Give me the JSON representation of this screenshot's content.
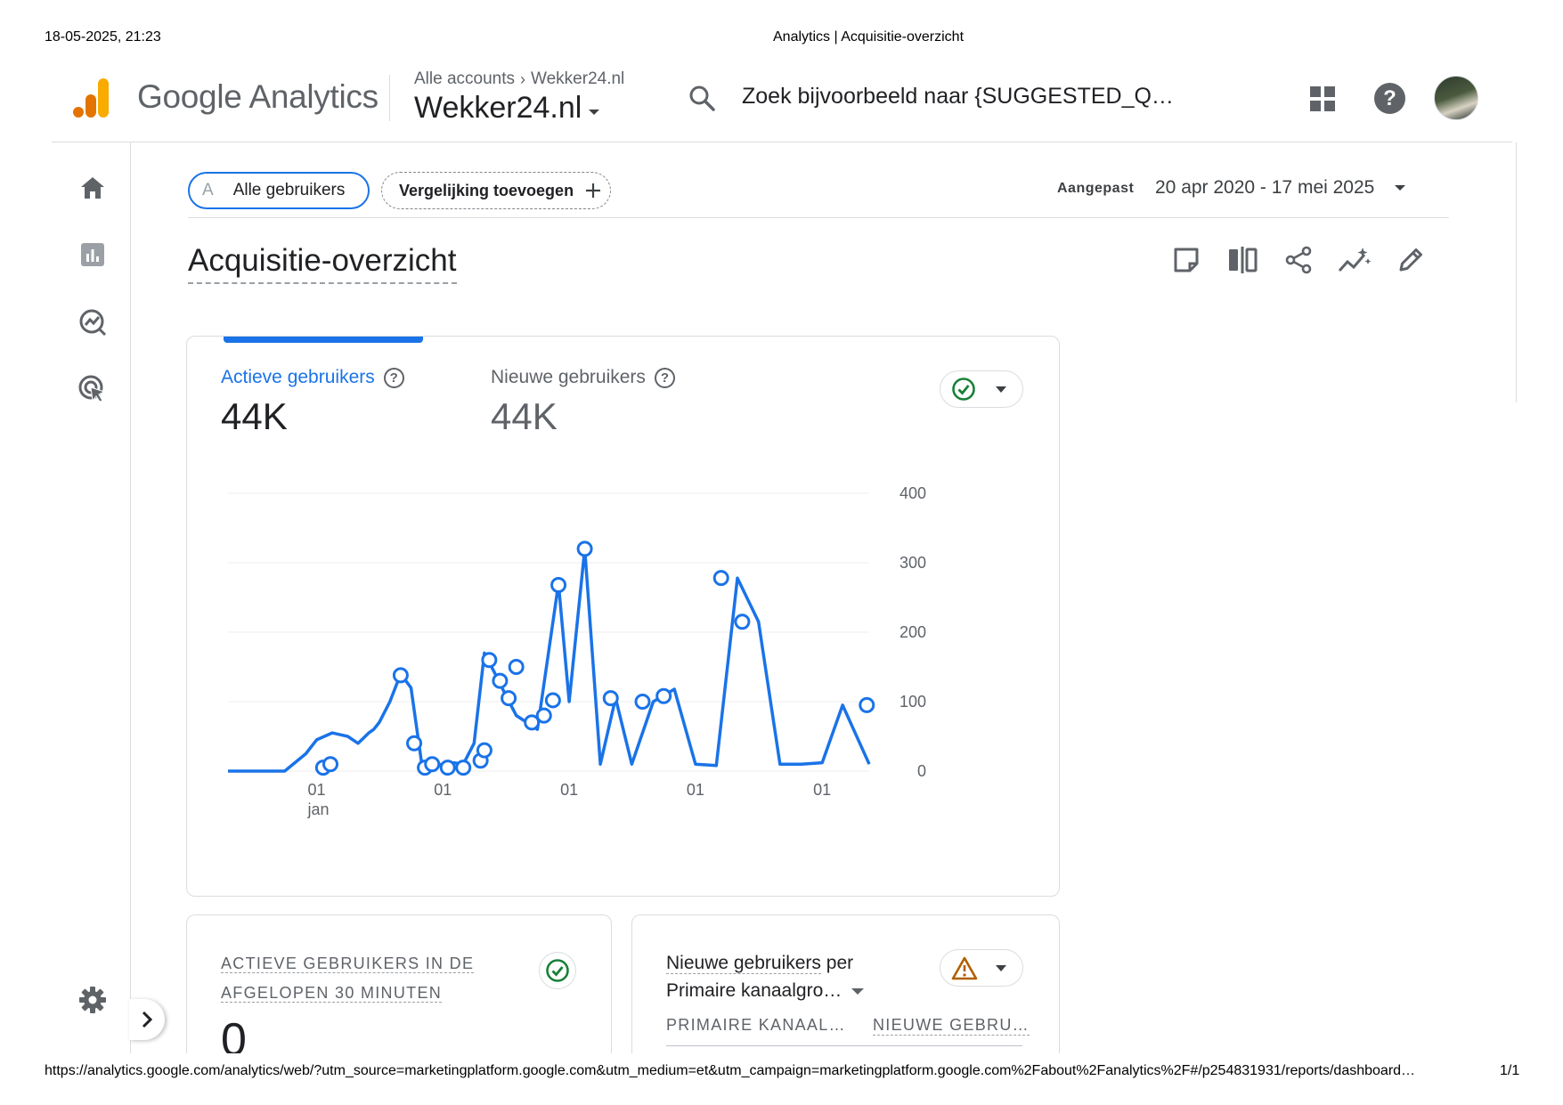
{
  "print_header": {
    "datetime": "18-05-2025, 21:23",
    "page_title": "Analytics | Acquisitie-overzicht"
  },
  "print_footer": {
    "url": "https://analytics.google.com/analytics/web/?utm_source=marketingplatform.google.com&utm_medium=et&utm_campaign=marketingplatform.google.com%2Fabout%2Fanalytics%2F#/p254831931/reports/dashboard…",
    "page_count": "1/1"
  },
  "app": {
    "brand": "Google Analytics",
    "breadcrumb_account": "Alle accounts",
    "breadcrumb_separator": ">",
    "breadcrumb_property": "Wekker24.nl",
    "property_name": "Wekker24.nl",
    "search_placeholder": "Zoek bijvoorbeeld naar {SUGGESTED_Q…"
  },
  "icons": {
    "logo": "google-analytics-logo",
    "search": "search-icon",
    "apps": "apps-grid-icon",
    "help": "help-icon",
    "avatar": "user-avatar",
    "nav": [
      "home-icon",
      "reports-icon",
      "explore-icon",
      "advertising-icon"
    ],
    "settings": "gear-icon",
    "expand": "chevron-right-icon"
  },
  "filters": {
    "segment_letter": "A",
    "segment_label": "Alle gebruikers",
    "compare_label": "Vergelijking toevoegen",
    "date_prefix": "Aangepast",
    "date_range": "20 apr 2020 - 17 mei 2025"
  },
  "page": {
    "title": "Acquisitie-overzicht",
    "tools": [
      "snapshot-icon",
      "compare-icon",
      "share-icon",
      "insights-icon",
      "edit-icon"
    ]
  },
  "metrics": {
    "active_label": "Actieve gebruikers",
    "active_value": "44K",
    "new_label": "Nieuwe gebruikers",
    "new_value": "44K",
    "help_glyph": "?"
  },
  "chart_data": {
    "type": "line",
    "series": [
      {
        "name": "Actieve gebruikers"
      }
    ],
    "x_tick_labels": [
      "01",
      "01",
      "01",
      "01",
      "01"
    ],
    "x_tick_sublabel": "jan",
    "y_ticks": [
      0,
      100,
      200,
      300,
      400
    ],
    "ylim": [
      0,
      400
    ],
    "x": [
      "2020-04-20",
      "2020-07-01",
      "2020-10-01",
      "2020-12-01",
      "2021-01-01",
      "2021-02-15",
      "2021-04-01",
      "2021-05-01",
      "2021-06-01",
      "2021-06-15",
      "2021-07-01",
      "2021-08-01",
      "2021-09-01",
      "2021-10-01",
      "2021-11-01",
      "2021-12-01",
      "2022-01-01",
      "2022-02-01",
      "2022-03-01",
      "2022-04-01",
      "2022-05-01",
      "2022-06-01",
      "2022-07-01",
      "2022-08-01",
      "2022-09-01",
      "2022-10-01",
      "2022-12-01",
      "2023-01-01",
      "2023-02-15",
      "2023-04-01",
      "2023-05-15",
      "2023-07-01",
      "2023-09-01",
      "2023-11-01",
      "2024-01-01",
      "2024-03-01",
      "2024-05-01",
      "2024-07-01",
      "2024-09-01",
      "2024-11-01",
      "2025-01-01",
      "2025-03-01",
      "2025-05-17"
    ],
    "values": [
      0,
      0,
      0,
      25,
      45,
      55,
      50,
      40,
      55,
      60,
      70,
      100,
      140,
      120,
      10,
      8,
      10,
      12,
      10,
      40,
      170,
      140,
      110,
      80,
      70,
      60,
      270,
      100,
      320,
      10,
      105,
      10,
      100,
      118,
      10,
      8,
      278,
      215,
      10,
      10,
      12,
      95,
      10
    ],
    "markers": [
      {
        "x": "2021-01-20",
        "y": 5
      },
      {
        "x": "2021-02-10",
        "y": 10
      },
      {
        "x": "2021-09-01",
        "y": 138
      },
      {
        "x": "2021-10-10",
        "y": 40
      },
      {
        "x": "2021-11-10",
        "y": 5
      },
      {
        "x": "2021-12-01",
        "y": 10
      },
      {
        "x": "2022-01-15",
        "y": 5
      },
      {
        "x": "2022-03-01",
        "y": 5
      },
      {
        "x": "2022-04-20",
        "y": 15
      },
      {
        "x": "2022-05-01",
        "y": 30
      },
      {
        "x": "2022-05-15",
        "y": 160
      },
      {
        "x": "2022-06-15",
        "y": 130
      },
      {
        "x": "2022-07-10",
        "y": 105
      },
      {
        "x": "2022-08-01",
        "y": 150
      },
      {
        "x": "2022-09-15",
        "y": 70
      },
      {
        "x": "2022-10-20",
        "y": 80
      },
      {
        "x": "2022-11-15",
        "y": 102
      },
      {
        "x": "2022-12-01",
        "y": 268
      },
      {
        "x": "2023-02-15",
        "y": 320
      },
      {
        "x": "2023-05-01",
        "y": 105
      },
      {
        "x": "2023-08-01",
        "y": 100
      },
      {
        "x": "2023-10-01",
        "y": 108
      },
      {
        "x": "2024-03-15",
        "y": 278
      },
      {
        "x": "2024-05-15",
        "y": 215
      },
      {
        "x": "2025-05-10",
        "y": 95
      }
    ]
  },
  "realtime_card": {
    "title_line1": "ACTIEVE GEBRUIKERS IN DE",
    "title_line2": "AFGELOPEN 30 MINUTEN",
    "value": "0"
  },
  "channel_card": {
    "title_part1": "Nieuwe gebruikers",
    "title_part2": "per",
    "dimension": "Primaire kanaalgro…",
    "col1": "PRIMAIRE KANAAL…",
    "col2": "NIEUWE GEBRU…"
  },
  "colors": {
    "accent": "#1a73e8",
    "success": "#188038",
    "warning": "#b06000",
    "logo_orange": "#f9ab00",
    "logo_dark_orange": "#e37400"
  }
}
